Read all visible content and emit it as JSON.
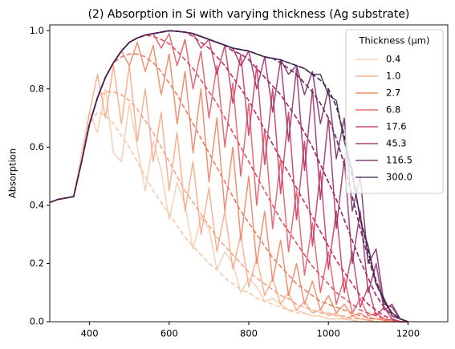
{
  "chart_data": {
    "type": "line",
    "title": "(2) Absorption in Si with varying thickness (Ag substrate)",
    "y_label": "Absorption",
    "legend_title": "Thickness (μm)",
    "legend": "upper right",
    "grid": false,
    "xlim": [
      300,
      1300
    ],
    "ylim": [
      0,
      1.02
    ],
    "xticks": [
      400,
      600,
      800,
      1000,
      1200
    ],
    "yticks": [
      {
        "value": 0,
        "label": "0.0"
      },
      0.2,
      0.4,
      0.6,
      0.8,
      {
        "value": 1,
        "label": "1.0"
      }
    ],
    "x": [
      300,
      320,
      340,
      360,
      380,
      400,
      420,
      440,
      460,
      480,
      500,
      520,
      540,
      560,
      580,
      600,
      620,
      640,
      660,
      680,
      700,
      720,
      740,
      760,
      780,
      800,
      820,
      840,
      860,
      880,
      900,
      920,
      940,
      960,
      980,
      1000,
      1020,
      1040,
      1060,
      1080,
      1100,
      1120,
      1140,
      1160,
      1180,
      1200
    ],
    "series": [
      {
        "name": "0.4",
        "color": "#f6c8a8",
        "values": [
          0.41,
          0.42,
          0.425,
          0.43,
          0.58,
          0.72,
          0.65,
          0.8,
          0.58,
          0.55,
          0.75,
          0.6,
          0.45,
          0.62,
          0.52,
          0.35,
          0.48,
          0.4,
          0.25,
          0.36,
          0.32,
          0.18,
          0.24,
          0.2,
          0.1,
          0.15,
          0.12,
          0.07,
          0.08,
          0.06,
          0.04,
          0.04,
          0.03,
          0.02,
          0.02,
          0.01,
          0.01,
          0.01,
          0.005,
          0,
          0,
          0,
          0,
          0,
          0,
          0
        ],
        "dashed_values": [
          0.41,
          0.42,
          0.425,
          0.43,
          0.55,
          0.68,
          0.72,
          0.71,
          0.68,
          0.64,
          0.6,
          0.55,
          0.5,
          0.45,
          0.41,
          0.37,
          0.33,
          0.29,
          0.26,
          0.23,
          0.2,
          0.18,
          0.15,
          0.13,
          0.11,
          0.1,
          0.08,
          0.07,
          0.06,
          0.05,
          0.04,
          0.03,
          0.03,
          0.02,
          0.02,
          0.01,
          0.01,
          0.01,
          0.005,
          0,
          0,
          0,
          0,
          0,
          0,
          0
        ]
      },
      {
        "name": "1.0",
        "color": "#f4a57f",
        "values": [
          0.41,
          0.42,
          0.425,
          0.43,
          0.55,
          0.72,
          0.85,
          0.7,
          0.88,
          0.68,
          0.88,
          0.62,
          0.8,
          0.55,
          0.72,
          0.45,
          0.65,
          0.38,
          0.55,
          0.3,
          0.46,
          0.24,
          0.38,
          0.18,
          0.3,
          0.12,
          0.22,
          0.09,
          0.15,
          0.06,
          0.1,
          0.04,
          0.07,
          0.03,
          0.04,
          0.02,
          0.03,
          0.01,
          0.02,
          0.01,
          0.005,
          0,
          0,
          0,
          0,
          0
        ],
        "dashed_values": [
          0.41,
          0.42,
          0.425,
          0.43,
          0.55,
          0.68,
          0.77,
          0.79,
          0.79,
          0.78,
          0.76,
          0.73,
          0.69,
          0.65,
          0.6,
          0.55,
          0.5,
          0.45,
          0.41,
          0.37,
          0.33,
          0.29,
          0.26,
          0.23,
          0.2,
          0.17,
          0.15,
          0.13,
          0.11,
          0.09,
          0.08,
          0.06,
          0.05,
          0.04,
          0.03,
          0.03,
          0.02,
          0.02,
          0.01,
          0.01,
          0.005,
          0,
          0,
          0,
          0,
          0
        ]
      },
      {
        "name": "2.7",
        "color": "#ef7d5d",
        "values": [
          0.41,
          0.42,
          0.425,
          0.43,
          0.55,
          0.68,
          0.77,
          0.84,
          0.89,
          0.93,
          0.88,
          0.96,
          0.86,
          0.95,
          0.78,
          0.92,
          0.68,
          0.86,
          0.58,
          0.8,
          0.48,
          0.7,
          0.38,
          0.6,
          0.28,
          0.5,
          0.2,
          0.38,
          0.14,
          0.28,
          0.09,
          0.2,
          0.06,
          0.14,
          0.04,
          0.09,
          0.03,
          0.06,
          0.02,
          0.03,
          0.01,
          0.01,
          0.005,
          0,
          0,
          0
        ],
        "dashed_values": [
          0.41,
          0.42,
          0.425,
          0.43,
          0.55,
          0.68,
          0.77,
          0.84,
          0.89,
          0.91,
          0.92,
          0.92,
          0.91,
          0.89,
          0.86,
          0.82,
          0.78,
          0.73,
          0.68,
          0.63,
          0.58,
          0.53,
          0.48,
          0.43,
          0.38,
          0.34,
          0.3,
          0.26,
          0.22,
          0.19,
          0.16,
          0.13,
          0.11,
          0.09,
          0.07,
          0.06,
          0.05,
          0.04,
          0.03,
          0.02,
          0.015,
          0.01,
          0.005,
          0,
          0,
          0
        ]
      },
      {
        "name": "6.8",
        "color": "#e4515a",
        "values": [
          0.41,
          0.42,
          0.425,
          0.43,
          0.55,
          0.68,
          0.77,
          0.84,
          0.89,
          0.93,
          0.96,
          0.975,
          0.985,
          0.99,
          0.94,
          0.99,
          0.88,
          0.97,
          0.8,
          0.93,
          0.7,
          0.88,
          0.6,
          0.82,
          0.5,
          0.75,
          0.4,
          0.66,
          0.32,
          0.56,
          0.24,
          0.45,
          0.16,
          0.34,
          0.1,
          0.24,
          0.06,
          0.15,
          0.03,
          0.08,
          0.02,
          0.03,
          0.01,
          0.005,
          0,
          0
        ],
        "dashed_values": [
          0.41,
          0.42,
          0.425,
          0.43,
          0.55,
          0.68,
          0.77,
          0.84,
          0.89,
          0.93,
          0.96,
          0.975,
          0.985,
          0.98,
          0.97,
          0.955,
          0.93,
          0.9,
          0.87,
          0.83,
          0.79,
          0.75,
          0.7,
          0.65,
          0.6,
          0.55,
          0.5,
          0.45,
          0.4,
          0.35,
          0.31,
          0.27,
          0.23,
          0.19,
          0.16,
          0.13,
          0.1,
          0.08,
          0.06,
          0.04,
          0.03,
          0.02,
          0.01,
          0.005,
          0,
          0
        ]
      },
      {
        "name": "17.6",
        "color": "#c72e5f",
        "values": [
          0.41,
          0.42,
          0.425,
          0.43,
          0.55,
          0.68,
          0.77,
          0.84,
          0.89,
          0.93,
          0.96,
          0.975,
          0.985,
          0.99,
          0.995,
          1.0,
          0.998,
          0.995,
          0.99,
          0.94,
          0.97,
          0.85,
          0.95,
          0.75,
          0.92,
          0.64,
          0.88,
          0.54,
          0.8,
          0.44,
          0.72,
          0.35,
          0.62,
          0.26,
          0.52,
          0.18,
          0.38,
          0.1,
          0.24,
          0.05,
          0.12,
          0.02,
          0.05,
          0.01,
          0,
          0
        ],
        "dashed_values": [
          0.41,
          0.42,
          0.425,
          0.43,
          0.55,
          0.68,
          0.77,
          0.84,
          0.89,
          0.93,
          0.96,
          0.975,
          0.985,
          0.99,
          0.995,
          1.0,
          0.998,
          0.995,
          0.98,
          0.96,
          0.94,
          0.91,
          0.88,
          0.84,
          0.8,
          0.76,
          0.71,
          0.66,
          0.61,
          0.56,
          0.51,
          0.46,
          0.41,
          0.36,
          0.31,
          0.26,
          0.21,
          0.17,
          0.13,
          0.09,
          0.06,
          0.04,
          0.02,
          0.01,
          0,
          0
        ]
      },
      {
        "name": "45.3",
        "color": "#9c2362",
        "values": [
          0.41,
          0.42,
          0.425,
          0.43,
          0.55,
          0.68,
          0.77,
          0.84,
          0.89,
          0.93,
          0.96,
          0.975,
          0.985,
          0.99,
          0.995,
          1.0,
          0.998,
          0.995,
          0.99,
          0.98,
          0.97,
          0.96,
          0.95,
          0.94,
          0.88,
          0.93,
          0.8,
          0.91,
          0.72,
          0.9,
          0.62,
          0.87,
          0.52,
          0.8,
          0.42,
          0.7,
          0.32,
          0.56,
          0.2,
          0.38,
          0.1,
          0.2,
          0.04,
          0.06,
          0.01,
          0
        ],
        "dashed_values": [
          0.41,
          0.42,
          0.425,
          0.43,
          0.55,
          0.68,
          0.77,
          0.84,
          0.89,
          0.93,
          0.96,
          0.975,
          0.985,
          0.99,
          0.995,
          1.0,
          0.998,
          0.995,
          0.99,
          0.98,
          0.97,
          0.96,
          0.95,
          0.93,
          0.92,
          0.9,
          0.87,
          0.84,
          0.81,
          0.78,
          0.74,
          0.7,
          0.65,
          0.6,
          0.54,
          0.48,
          0.42,
          0.35,
          0.28,
          0.21,
          0.15,
          0.09,
          0.05,
          0.02,
          0.01,
          0
        ]
      },
      {
        "name": "116.5",
        "color": "#6e245f",
        "values": [
          0.41,
          0.42,
          0.425,
          0.43,
          0.55,
          0.68,
          0.77,
          0.84,
          0.89,
          0.93,
          0.96,
          0.975,
          0.985,
          0.99,
          0.995,
          1.0,
          0.998,
          0.995,
          0.99,
          0.98,
          0.97,
          0.96,
          0.95,
          0.94,
          0.935,
          0.93,
          0.92,
          0.91,
          0.905,
          0.9,
          0.85,
          0.88,
          0.78,
          0.86,
          0.68,
          0.8,
          0.56,
          0.7,
          0.38,
          0.5,
          0.2,
          0.25,
          0.06,
          0.05,
          0.01,
          0
        ],
        "dashed_values": [
          0.41,
          0.42,
          0.425,
          0.43,
          0.55,
          0.68,
          0.77,
          0.84,
          0.89,
          0.93,
          0.96,
          0.975,
          0.985,
          0.99,
          0.995,
          1.0,
          0.998,
          0.995,
          0.99,
          0.98,
          0.97,
          0.96,
          0.95,
          0.94,
          0.935,
          0.93,
          0.92,
          0.91,
          0.905,
          0.89,
          0.87,
          0.85,
          0.82,
          0.79,
          0.75,
          0.7,
          0.63,
          0.54,
          0.43,
          0.32,
          0.22,
          0.13,
          0.07,
          0.03,
          0.01,
          0
        ]
      },
      {
        "name": "300.0",
        "color": "#402451",
        "values": [
          0.41,
          0.42,
          0.425,
          0.43,
          0.55,
          0.68,
          0.77,
          0.84,
          0.89,
          0.93,
          0.96,
          0.975,
          0.985,
          0.99,
          0.995,
          1.0,
          0.998,
          0.995,
          0.99,
          0.98,
          0.97,
          0.96,
          0.95,
          0.94,
          0.935,
          0.93,
          0.92,
          0.91,
          0.905,
          0.9,
          0.89,
          0.88,
          0.87,
          0.85,
          0.85,
          0.78,
          0.76,
          0.62,
          0.52,
          0.35,
          0.26,
          0.13,
          0.08,
          0.02,
          0.01,
          0
        ],
        "dashed_values": [
          0.41,
          0.42,
          0.425,
          0.43,
          0.55,
          0.68,
          0.77,
          0.84,
          0.89,
          0.93,
          0.96,
          0.975,
          0.985,
          0.99,
          0.995,
          1.0,
          0.998,
          0.995,
          0.99,
          0.98,
          0.97,
          0.96,
          0.95,
          0.94,
          0.935,
          0.93,
          0.92,
          0.91,
          0.905,
          0.9,
          0.89,
          0.88,
          0.87,
          0.85,
          0.83,
          0.8,
          0.74,
          0.64,
          0.5,
          0.36,
          0.24,
          0.14,
          0.07,
          0.03,
          0.01,
          0
        ]
      }
    ]
  }
}
